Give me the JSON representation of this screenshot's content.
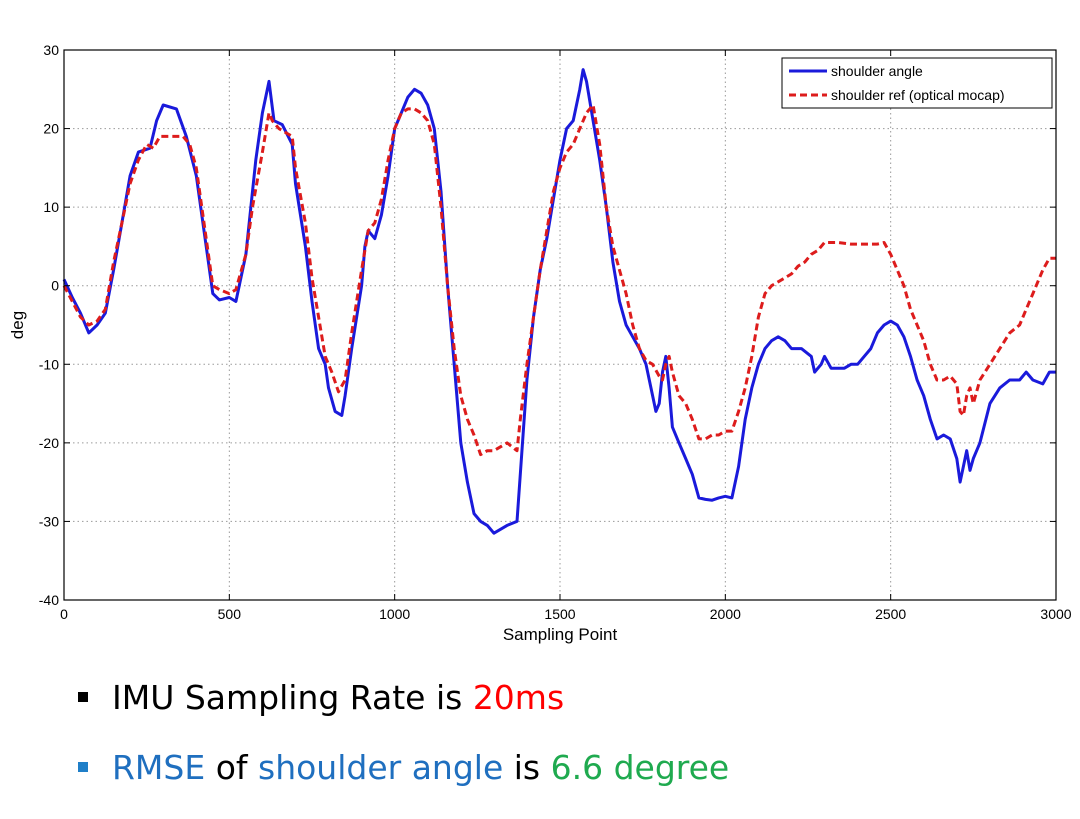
{
  "chart_data": {
    "type": "line",
    "title": "",
    "xlabel": "Sampling Point",
    "ylabel": "deg",
    "xlim": [
      0,
      3000
    ],
    "ylim": [
      -40,
      30
    ],
    "xticks": [
      0,
      500,
      1000,
      1500,
      2000,
      2500,
      3000
    ],
    "yticks": [
      -40,
      -30,
      -20,
      -10,
      0,
      10,
      20,
      30
    ],
    "grid": true,
    "legend_position": "top-right",
    "series": [
      {
        "name": "shoulder angle",
        "color": "#1a1adb",
        "style": "solid",
        "points": [
          [
            0,
            0.8
          ],
          [
            25,
            -1.5
          ],
          [
            50,
            -3.5
          ],
          [
            75,
            -6
          ],
          [
            100,
            -5
          ],
          [
            125,
            -3.5
          ],
          [
            150,
            2
          ],
          [
            175,
            8
          ],
          [
            200,
            14
          ],
          [
            225,
            17
          ],
          [
            260,
            17.5
          ],
          [
            280,
            21
          ],
          [
            300,
            23
          ],
          [
            340,
            22.5
          ],
          [
            370,
            19
          ],
          [
            400,
            14
          ],
          [
            430,
            5
          ],
          [
            450,
            -1
          ],
          [
            470,
            -1.8
          ],
          [
            500,
            -1.5
          ],
          [
            520,
            -2
          ],
          [
            550,
            4
          ],
          [
            580,
            16
          ],
          [
            600,
            22
          ],
          [
            620,
            26
          ],
          [
            635,
            21
          ],
          [
            660,
            20.5
          ],
          [
            690,
            18
          ],
          [
            700,
            13
          ],
          [
            730,
            5
          ],
          [
            750,
            -2
          ],
          [
            770,
            -8
          ],
          [
            790,
            -10
          ],
          [
            800,
            -13
          ],
          [
            820,
            -16
          ],
          [
            840,
            -16.5
          ],
          [
            850,
            -14
          ],
          [
            870,
            -8
          ],
          [
            900,
            0
          ],
          [
            910,
            5
          ],
          [
            920,
            7
          ],
          [
            940,
            6
          ],
          [
            960,
            9
          ],
          [
            980,
            14
          ],
          [
            1000,
            20
          ],
          [
            1020,
            22
          ],
          [
            1040,
            24
          ],
          [
            1060,
            25
          ],
          [
            1080,
            24.5
          ],
          [
            1100,
            23
          ],
          [
            1120,
            20
          ],
          [
            1140,
            12
          ],
          [
            1160,
            0
          ],
          [
            1180,
            -10
          ],
          [
            1200,
            -20
          ],
          [
            1220,
            -25
          ],
          [
            1240,
            -29
          ],
          [
            1260,
            -30
          ],
          [
            1280,
            -30.5
          ],
          [
            1300,
            -31.5
          ],
          [
            1320,
            -31
          ],
          [
            1340,
            -30.5
          ],
          [
            1370,
            -30
          ],
          [
            1380,
            -24
          ],
          [
            1400,
            -12
          ],
          [
            1420,
            -4
          ],
          [
            1440,
            2
          ],
          [
            1460,
            6
          ],
          [
            1480,
            11
          ],
          [
            1500,
            16
          ],
          [
            1520,
            20
          ],
          [
            1540,
            21
          ],
          [
            1560,
            25
          ],
          [
            1570,
            27.5
          ],
          [
            1580,
            26
          ],
          [
            1600,
            21
          ],
          [
            1620,
            16
          ],
          [
            1640,
            10
          ],
          [
            1660,
            3
          ],
          [
            1680,
            -2
          ],
          [
            1700,
            -5
          ],
          [
            1720,
            -6.5
          ],
          [
            1740,
            -8
          ],
          [
            1760,
            -10
          ],
          [
            1780,
            -14
          ],
          [
            1790,
            -16
          ],
          [
            1800,
            -15
          ],
          [
            1810,
            -11
          ],
          [
            1820,
            -9
          ],
          [
            1830,
            -13
          ],
          [
            1840,
            -18
          ],
          [
            1860,
            -20
          ],
          [
            1880,
            -22
          ],
          [
            1900,
            -24
          ],
          [
            1920,
            -27
          ],
          [
            1940,
            -27.2
          ],
          [
            1960,
            -27.3
          ],
          [
            1980,
            -27
          ],
          [
            2000,
            -26.8
          ],
          [
            2020,
            -27
          ],
          [
            2040,
            -23
          ],
          [
            2060,
            -17
          ],
          [
            2080,
            -13
          ],
          [
            2100,
            -10
          ],
          [
            2120,
            -8
          ],
          [
            2140,
            -7
          ],
          [
            2160,
            -6.5
          ],
          [
            2180,
            -7
          ],
          [
            2200,
            -8
          ],
          [
            2230,
            -8
          ],
          [
            2260,
            -9
          ],
          [
            2270,
            -11
          ],
          [
            2290,
            -10
          ],
          [
            2300,
            -9
          ],
          [
            2320,
            -10.5
          ],
          [
            2340,
            -10.5
          ],
          [
            2360,
            -10.5
          ],
          [
            2380,
            -10
          ],
          [
            2400,
            -10
          ],
          [
            2420,
            -9
          ],
          [
            2440,
            -8
          ],
          [
            2460,
            -6
          ],
          [
            2480,
            -5
          ],
          [
            2500,
            -4.5
          ],
          [
            2520,
            -5
          ],
          [
            2540,
            -6.5
          ],
          [
            2560,
            -9
          ],
          [
            2580,
            -12
          ],
          [
            2600,
            -14
          ],
          [
            2620,
            -17
          ],
          [
            2640,
            -19.5
          ],
          [
            2660,
            -19
          ],
          [
            2680,
            -19.5
          ],
          [
            2700,
            -22
          ],
          [
            2710,
            -25
          ],
          [
            2720,
            -23
          ],
          [
            2730,
            -21
          ],
          [
            2740,
            -23.5
          ],
          [
            2750,
            -22
          ],
          [
            2770,
            -20
          ],
          [
            2800,
            -15
          ],
          [
            2830,
            -13
          ],
          [
            2860,
            -12
          ],
          [
            2890,
            -12
          ],
          [
            2910,
            -11
          ],
          [
            2930,
            -12
          ],
          [
            2960,
            -12.5
          ],
          [
            2980,
            -11
          ],
          [
            3000,
            -11
          ]
        ]
      },
      {
        "name": "shoulder ref (optical mocap)",
        "color": "#dd1c1c",
        "style": "dashed",
        "points": [
          [
            0,
            0
          ],
          [
            25,
            -2
          ],
          [
            50,
            -4
          ],
          [
            75,
            -5
          ],
          [
            100,
            -4.5
          ],
          [
            125,
            -3
          ],
          [
            150,
            3
          ],
          [
            175,
            8
          ],
          [
            200,
            13
          ],
          [
            225,
            16
          ],
          [
            250,
            18
          ],
          [
            270,
            17.5
          ],
          [
            290,
            19
          ],
          [
            330,
            19
          ],
          [
            360,
            19
          ],
          [
            380,
            18
          ],
          [
            400,
            15
          ],
          [
            430,
            6
          ],
          [
            450,
            0
          ],
          [
            470,
            -0.5
          ],
          [
            500,
            -1
          ],
          [
            520,
            -0.5
          ],
          [
            550,
            4
          ],
          [
            570,
            10
          ],
          [
            600,
            17
          ],
          [
            620,
            22
          ],
          [
            630,
            21
          ],
          [
            650,
            20
          ],
          [
            690,
            19
          ],
          [
            700,
            15
          ],
          [
            730,
            8
          ],
          [
            750,
            1
          ],
          [
            770,
            -4
          ],
          [
            790,
            -9
          ],
          [
            810,
            -11
          ],
          [
            830,
            -13.5
          ],
          [
            850,
            -12
          ],
          [
            870,
            -6
          ],
          [
            900,
            2
          ],
          [
            920,
            7
          ],
          [
            940,
            8
          ],
          [
            960,
            11
          ],
          [
            980,
            16
          ],
          [
            1000,
            20
          ],
          [
            1020,
            22
          ],
          [
            1040,
            22.5
          ],
          [
            1060,
            22.5
          ],
          [
            1080,
            22
          ],
          [
            1100,
            21
          ],
          [
            1120,
            18
          ],
          [
            1140,
            10
          ],
          [
            1160,
            0
          ],
          [
            1180,
            -8
          ],
          [
            1200,
            -14
          ],
          [
            1220,
            -17
          ],
          [
            1240,
            -19
          ],
          [
            1260,
            -21.5
          ],
          [
            1280,
            -21
          ],
          [
            1300,
            -21
          ],
          [
            1320,
            -20.5
          ],
          [
            1340,
            -20
          ],
          [
            1370,
            -21
          ],
          [
            1380,
            -17
          ],
          [
            1400,
            -10
          ],
          [
            1420,
            -4
          ],
          [
            1440,
            2
          ],
          [
            1460,
            7
          ],
          [
            1480,
            12
          ],
          [
            1500,
            15
          ],
          [
            1520,
            17
          ],
          [
            1540,
            18
          ],
          [
            1560,
            20
          ],
          [
            1580,
            22
          ],
          [
            1600,
            23
          ],
          [
            1620,
            18
          ],
          [
            1640,
            10
          ],
          [
            1660,
            5
          ],
          [
            1680,
            2
          ],
          [
            1700,
            -1
          ],
          [
            1720,
            -5
          ],
          [
            1740,
            -8
          ],
          [
            1760,
            -9.5
          ],
          [
            1780,
            -10
          ],
          [
            1800,
            -11.5
          ],
          [
            1810,
            -12
          ],
          [
            1820,
            -10
          ],
          [
            1830,
            -9
          ],
          [
            1840,
            -11
          ],
          [
            1860,
            -14
          ],
          [
            1880,
            -15
          ],
          [
            1900,
            -17
          ],
          [
            1920,
            -19.5
          ],
          [
            1940,
            -19.5
          ],
          [
            1960,
            -19
          ],
          [
            1980,
            -19
          ],
          [
            2000,
            -18.5
          ],
          [
            2020,
            -18.5
          ],
          [
            2040,
            -16
          ],
          [
            2060,
            -13
          ],
          [
            2080,
            -9
          ],
          [
            2100,
            -4
          ],
          [
            2120,
            -1
          ],
          [
            2140,
            0
          ],
          [
            2160,
            0.5
          ],
          [
            2180,
            1
          ],
          [
            2200,
            1.5
          ],
          [
            2220,
            2.5
          ],
          [
            2240,
            3
          ],
          [
            2260,
            4
          ],
          [
            2280,
            4.5
          ],
          [
            2300,
            5.5
          ],
          [
            2340,
            5.5
          ],
          [
            2380,
            5.3
          ],
          [
            2420,
            5.3
          ],
          [
            2460,
            5.3
          ],
          [
            2480,
            5.5
          ],
          [
            2500,
            4
          ],
          [
            2520,
            2
          ],
          [
            2540,
            0
          ],
          [
            2560,
            -3
          ],
          [
            2580,
            -5
          ],
          [
            2600,
            -7
          ],
          [
            2620,
            -10
          ],
          [
            2640,
            -12
          ],
          [
            2660,
            -12
          ],
          [
            2680,
            -11.5
          ],
          [
            2700,
            -12.5
          ],
          [
            2710,
            -16
          ],
          [
            2720,
            -16.5
          ],
          [
            2730,
            -14
          ],
          [
            2740,
            -13
          ],
          [
            2750,
            -15
          ],
          [
            2770,
            -12
          ],
          [
            2800,
            -10
          ],
          [
            2830,
            -8
          ],
          [
            2860,
            -6
          ],
          [
            2890,
            -5
          ],
          [
            2910,
            -3
          ],
          [
            2930,
            -1
          ],
          [
            2960,
            2
          ],
          [
            2980,
            3.5
          ],
          [
            3000,
            3.5
          ]
        ]
      }
    ]
  },
  "bullets": [
    {
      "marker_color": "#000000",
      "parts": [
        {
          "text": "IMU Sampling Rate is ",
          "color": "#000000"
        },
        {
          "text": "20ms",
          "color": "#ff0000"
        }
      ]
    },
    {
      "marker_color": "#1f7fc8",
      "parts": [
        {
          "text": "RMSE",
          "color": "#1f6fbf"
        },
        {
          "text": " of ",
          "color": "#000000"
        },
        {
          "text": "shoulder angle",
          "color": "#1f6fbf"
        },
        {
          "text": " is ",
          "color": "#000000"
        },
        {
          "text": "6.6 degree",
          "color": "#1faa4f"
        }
      ]
    }
  ]
}
